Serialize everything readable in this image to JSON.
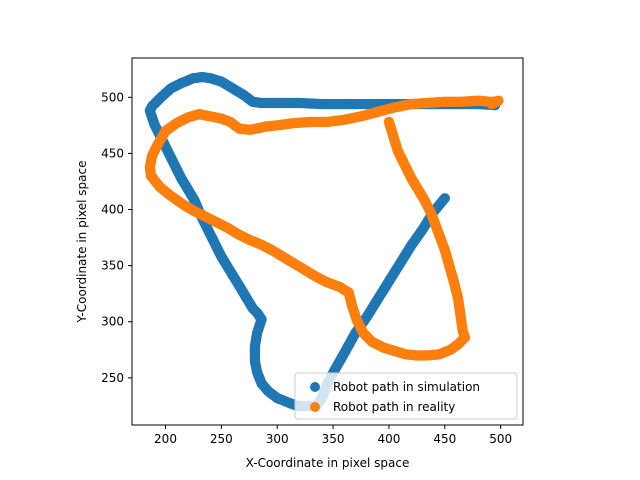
{
  "chart_data": {
    "type": "scatter",
    "xlabel": "X-Coordinate in pixel space",
    "ylabel": "Y-Coordinate in pixel space",
    "xlim": [
      170,
      520
    ],
    "ylim": [
      208,
      535
    ],
    "xticks": [
      200,
      250,
      300,
      350,
      400,
      450,
      500
    ],
    "yticks": [
      250,
      300,
      350,
      400,
      450,
      500
    ],
    "grid": false,
    "legend_position": "lower-right",
    "series": [
      {
        "name": "Robot path in simulation",
        "color": "#1f77b4",
        "points": [
          [
            450,
            410
          ],
          [
            440,
            398
          ],
          [
            430,
            382
          ],
          [
            420,
            368
          ],
          [
            410,
            352
          ],
          [
            400,
            336
          ],
          [
            390,
            320
          ],
          [
            380,
            304
          ],
          [
            370,
            290
          ],
          [
            360,
            272
          ],
          [
            352,
            258
          ],
          [
            345,
            245
          ],
          [
            340,
            232
          ],
          [
            335,
            225
          ],
          [
            325,
            225
          ],
          [
            318,
            225
          ],
          [
            310,
            228
          ],
          [
            300,
            232
          ],
          [
            292,
            238
          ],
          [
            286,
            245
          ],
          [
            282,
            255
          ],
          [
            280,
            265
          ],
          [
            280,
            278
          ],
          [
            282,
            290
          ],
          [
            286,
            302
          ],
          [
            282,
            308
          ],
          [
            278,
            312
          ],
          [
            272,
            322
          ],
          [
            266,
            332
          ],
          [
            258,
            345
          ],
          [
            250,
            358
          ],
          [
            244,
            370
          ],
          [
            238,
            382
          ],
          [
            232,
            394
          ],
          [
            226,
            408
          ],
          [
            220,
            418
          ],
          [
            214,
            428
          ],
          [
            208,
            440
          ],
          [
            202,
            452
          ],
          [
            196,
            464
          ],
          [
            190,
            476
          ],
          [
            186,
            488
          ],
          [
            188,
            492
          ],
          [
            196,
            500
          ],
          [
            205,
            508
          ],
          [
            215,
            513
          ],
          [
            225,
            517
          ],
          [
            233,
            518
          ],
          [
            240,
            517
          ],
          [
            250,
            514
          ],
          [
            260,
            508
          ],
          [
            270,
            502
          ],
          [
            278,
            496
          ],
          [
            285,
            495
          ],
          [
            300,
            495
          ],
          [
            320,
            495
          ],
          [
            340,
            494
          ],
          [
            360,
            494
          ],
          [
            380,
            494
          ],
          [
            400,
            494
          ],
          [
            420,
            494
          ],
          [
            440,
            494
          ],
          [
            460,
            494
          ],
          [
            480,
            494
          ],
          [
            495,
            493
          ]
        ]
      },
      {
        "name": "Robot path in reality",
        "color": "#ff7f0e",
        "points": [
          [
            400,
            478
          ],
          [
            404,
            465
          ],
          [
            408,
            452
          ],
          [
            414,
            440
          ],
          [
            420,
            428
          ],
          [
            426,
            418
          ],
          [
            432,
            408
          ],
          [
            438,
            396
          ],
          [
            444,
            380
          ],
          [
            450,
            364
          ],
          [
            454,
            350
          ],
          [
            458,
            336
          ],
          [
            462,
            320
          ],
          [
            464,
            306
          ],
          [
            466,
            292
          ],
          [
            468,
            286
          ],
          [
            462,
            280
          ],
          [
            455,
            275
          ],
          [
            445,
            271
          ],
          [
            435,
            270
          ],
          [
            425,
            270
          ],
          [
            415,
            271
          ],
          [
            405,
            274
          ],
          [
            395,
            277
          ],
          [
            385,
            282
          ],
          [
            377,
            290
          ],
          [
            371,
            302
          ],
          [
            367,
            314
          ],
          [
            364,
            326
          ],
          [
            356,
            331
          ],
          [
            345,
            335
          ],
          [
            335,
            340
          ],
          [
            325,
            346
          ],
          [
            315,
            352
          ],
          [
            305,
            358
          ],
          [
            295,
            364
          ],
          [
            285,
            369
          ],
          [
            275,
            373
          ],
          [
            265,
            378
          ],
          [
            255,
            384
          ],
          [
            245,
            389
          ],
          [
            235,
            394
          ],
          [
            225,
            399
          ],
          [
            215,
            405
          ],
          [
            205,
            412
          ],
          [
            195,
            420
          ],
          [
            187,
            430
          ],
          [
            186,
            438
          ],
          [
            188,
            448
          ],
          [
            192,
            456
          ],
          [
            196,
            463
          ],
          [
            200,
            470
          ],
          [
            210,
            477
          ],
          [
            220,
            482
          ],
          [
            230,
            485
          ],
          [
            240,
            483
          ],
          [
            250,
            481
          ],
          [
            258,
            478
          ],
          [
            266,
            472
          ],
          [
            276,
            471
          ],
          [
            290,
            474
          ],
          [
            300,
            475
          ],
          [
            315,
            477
          ],
          [
            330,
            478
          ],
          [
            345,
            478
          ],
          [
            360,
            480
          ],
          [
            375,
            483
          ],
          [
            390,
            487
          ],
          [
            405,
            491
          ],
          [
            420,
            494
          ],
          [
            435,
            495
          ],
          [
            450,
            496
          ],
          [
            465,
            496
          ],
          [
            480,
            497
          ],
          [
            490,
            496
          ],
          [
            495,
            496
          ],
          [
            498,
            497
          ],
          [
            492,
            494
          ]
        ]
      }
    ]
  }
}
